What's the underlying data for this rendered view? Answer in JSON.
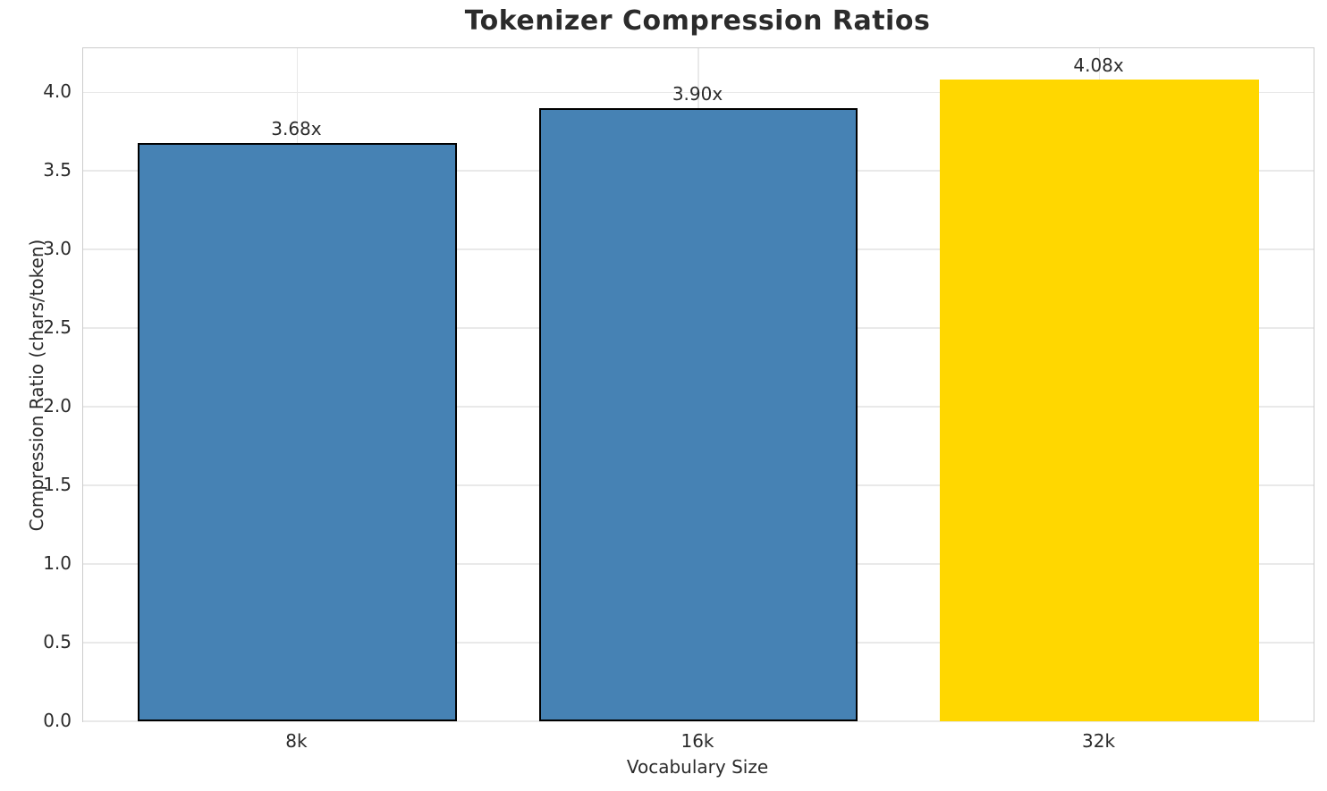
{
  "chart_data": {
    "type": "bar",
    "title": "Tokenizer Compression Ratios",
    "xlabel": "Vocabulary Size",
    "ylabel": "Compression Ratio (chars/token)",
    "categories": [
      "8k",
      "16k",
      "32k"
    ],
    "values": [
      3.68,
      3.9,
      4.08
    ],
    "bar_labels": [
      "3.68x",
      "3.90x",
      "4.08x"
    ],
    "bar_colors": [
      "#4682b4",
      "#4682b4",
      "#ffd700"
    ],
    "bar_edge_colors": [
      "#000000",
      "#000000",
      "#ffd700"
    ],
    "ylim": [
      0,
      4.28
    ],
    "yticks": [
      0.0,
      0.5,
      1.0,
      1.5,
      2.0,
      2.5,
      3.0,
      3.5,
      4.0
    ],
    "ytick_labels": [
      "0.0",
      "0.5",
      "1.0",
      "1.5",
      "2.0",
      "2.5",
      "3.0",
      "3.5",
      "4.0"
    ],
    "grid": true,
    "legend": false,
    "colors": {
      "grid": "#e9e9e9",
      "spine": "#cccccc",
      "text": "#2b2b2b",
      "bar_blue": "#4682b4",
      "bar_gold": "#ffd700",
      "background": "#ffffff"
    }
  }
}
